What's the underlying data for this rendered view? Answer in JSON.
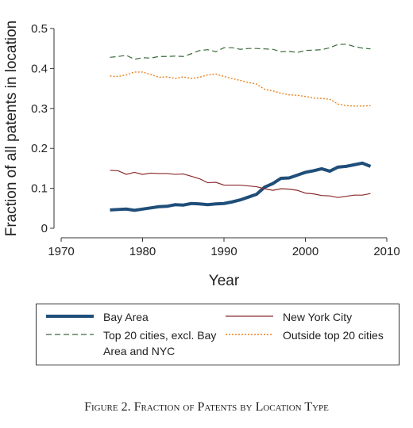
{
  "chart_data": {
    "type": "line",
    "title": "Figure 2. Fraction of Patents by Location Type",
    "x_label": "Year",
    "y_label": "Fraction of all patents in location",
    "x": [
      1976,
      1977,
      1978,
      1979,
      1980,
      1981,
      1982,
      1983,
      1984,
      1985,
      1986,
      1987,
      1988,
      1989,
      1990,
      1991,
      1992,
      1993,
      1994,
      1995,
      1996,
      1997,
      1998,
      1999,
      2000,
      2001,
      2002,
      2003,
      2004,
      2005,
      2006,
      2007,
      2008
    ],
    "series": [
      {
        "name": "Bay Area",
        "color": "#1f4e79",
        "style": "solid",
        "width": 4,
        "values": [
          0.046,
          0.047,
          0.048,
          0.045,
          0.048,
          0.051,
          0.054,
          0.055,
          0.059,
          0.058,
          0.062,
          0.061,
          0.059,
          0.061,
          0.062,
          0.066,
          0.071,
          0.078,
          0.085,
          0.103,
          0.112,
          0.125,
          0.126,
          0.133,
          0.14,
          0.144,
          0.149,
          0.143,
          0.153,
          0.155,
          0.159,
          0.163,
          0.155
        ]
      },
      {
        "name": "New York City",
        "color": "#8b2a2a",
        "style": "solid",
        "width": 1.2,
        "values": [
          0.145,
          0.144,
          0.135,
          0.14,
          0.135,
          0.138,
          0.137,
          0.137,
          0.135,
          0.136,
          0.13,
          0.124,
          0.114,
          0.115,
          0.108,
          0.108,
          0.108,
          0.106,
          0.104,
          0.099,
          0.095,
          0.099,
          0.098,
          0.095,
          0.088,
          0.086,
          0.082,
          0.081,
          0.077,
          0.08,
          0.083,
          0.083,
          0.087
        ]
      },
      {
        "name": "Top 20 cities, excl. Bay Area and NYC",
        "color": "#3a6b3a",
        "style": "dashed",
        "width": 1.2,
        "values": [
          0.428,
          0.43,
          0.433,
          0.423,
          0.427,
          0.426,
          0.43,
          0.43,
          0.431,
          0.43,
          0.437,
          0.445,
          0.447,
          0.442,
          0.452,
          0.452,
          0.448,
          0.45,
          0.45,
          0.449,
          0.448,
          0.442,
          0.443,
          0.44,
          0.445,
          0.446,
          0.447,
          0.452,
          0.46,
          0.461,
          0.455,
          0.451,
          0.449
        ]
      },
      {
        "name": "Outside top 20 cities",
        "color": "#e8821e",
        "style": "dotted",
        "width": 1.4,
        "values": [
          0.381,
          0.38,
          0.384,
          0.391,
          0.391,
          0.385,
          0.378,
          0.379,
          0.375,
          0.379,
          0.375,
          0.378,
          0.384,
          0.386,
          0.38,
          0.375,
          0.37,
          0.365,
          0.361,
          0.348,
          0.344,
          0.338,
          0.334,
          0.333,
          0.33,
          0.326,
          0.325,
          0.323,
          0.311,
          0.307,
          0.306,
          0.306,
          0.307
        ]
      }
    ],
    "xlim": [
      1970,
      2010
    ],
    "xticks": [
      1970,
      1980,
      1990,
      2000,
      2010
    ],
    "ylim": [
      0,
      0.5
    ],
    "yticks": [
      0,
      0.1,
      0.2,
      0.3,
      0.4,
      0.5
    ],
    "grid": false
  }
}
